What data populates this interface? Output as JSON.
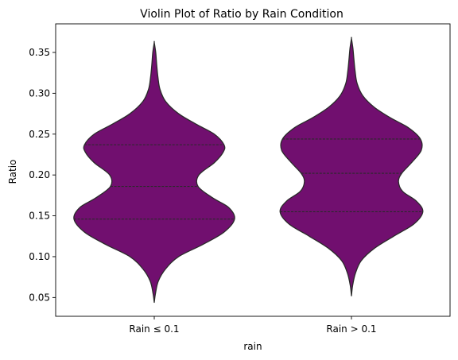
{
  "chart_data": {
    "type": "violin",
    "title": "Violin Plot of Ratio by Rain Condition",
    "xlabel": "rain",
    "ylabel": "Ratio",
    "ylim": [
      0.027,
      0.385
    ],
    "yticks": [
      0.05,
      0.1,
      0.15,
      0.2,
      0.25,
      0.3,
      0.35
    ],
    "ytick_labels": [
      "0.05",
      "0.10",
      "0.15",
      "0.20",
      "0.25",
      "0.30",
      "0.35"
    ],
    "categories": [
      "Rain ≤ 0.1",
      "Rain > 0.1"
    ],
    "fill_color": "#710f6f",
    "edge_color": "#2a2a2a",
    "inner": "quartile",
    "grid": false,
    "violins": [
      {
        "category": "Rain ≤ 0.1",
        "min": 0.044,
        "max": 0.362,
        "quartiles": [
          0.146,
          0.186,
          0.237
        ],
        "density_profile": [
          [
            0.044,
            0.0
          ],
          [
            0.055,
            0.015
          ],
          [
            0.07,
            0.05
          ],
          [
            0.085,
            0.14
          ],
          [
            0.1,
            0.3
          ],
          [
            0.115,
            0.6
          ],
          [
            0.13,
            0.86
          ],
          [
            0.146,
            0.99
          ],
          [
            0.16,
            0.92
          ],
          [
            0.172,
            0.72
          ],
          [
            0.186,
            0.54
          ],
          [
            0.2,
            0.55
          ],
          [
            0.215,
            0.74
          ],
          [
            0.228,
            0.85
          ],
          [
            0.237,
            0.86
          ],
          [
            0.25,
            0.74
          ],
          [
            0.262,
            0.52
          ],
          [
            0.275,
            0.3
          ],
          [
            0.29,
            0.14
          ],
          [
            0.305,
            0.07
          ],
          [
            0.32,
            0.045
          ],
          [
            0.335,
            0.03
          ],
          [
            0.35,
            0.018
          ],
          [
            0.362,
            0.0
          ]
        ]
      },
      {
        "category": "Rain > 0.1",
        "min": 0.052,
        "max": 0.367,
        "quartiles": [
          0.155,
          0.202,
          0.244
        ],
        "density_profile": [
          [
            0.052,
            0.0
          ],
          [
            0.065,
            0.015
          ],
          [
            0.08,
            0.05
          ],
          [
            0.095,
            0.12
          ],
          [
            0.11,
            0.28
          ],
          [
            0.125,
            0.52
          ],
          [
            0.14,
            0.77
          ],
          [
            0.155,
            0.88
          ],
          [
            0.168,
            0.8
          ],
          [
            0.18,
            0.63
          ],
          [
            0.192,
            0.58
          ],
          [
            0.202,
            0.62
          ],
          [
            0.215,
            0.74
          ],
          [
            0.23,
            0.86
          ],
          [
            0.244,
            0.85
          ],
          [
            0.258,
            0.7
          ],
          [
            0.27,
            0.48
          ],
          [
            0.283,
            0.28
          ],
          [
            0.297,
            0.14
          ],
          [
            0.312,
            0.07
          ],
          [
            0.327,
            0.045
          ],
          [
            0.342,
            0.03
          ],
          [
            0.355,
            0.018
          ],
          [
            0.367,
            0.0
          ]
        ]
      }
    ]
  }
}
